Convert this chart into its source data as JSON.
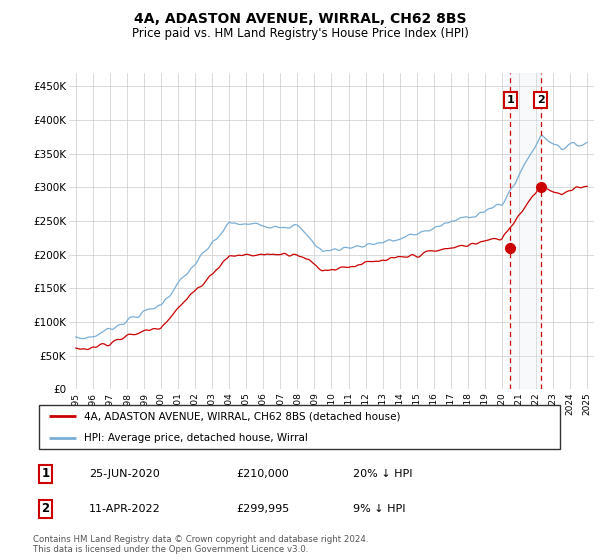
{
  "title": "4A, ADASTON AVENUE, WIRRAL, CH62 8BS",
  "subtitle": "Price paid vs. HM Land Registry's House Price Index (HPI)",
  "footer": "Contains HM Land Registry data © Crown copyright and database right 2024.\nThis data is licensed under the Open Government Licence v3.0.",
  "legend_line1": "4A, ADASTON AVENUE, WIRRAL, CH62 8BS (detached house)",
  "legend_line2": "HPI: Average price, detached house, Wirral",
  "annotation1_label": "1",
  "annotation1_date": "25-JUN-2020",
  "annotation1_price": "£210,000",
  "annotation1_hpi": "20% ↓ HPI",
  "annotation2_label": "2",
  "annotation2_date": "11-APR-2022",
  "annotation2_price": "£299,995",
  "annotation2_hpi": "9% ↓ HPI",
  "red_color": "#cc0000",
  "blue_color": "#7aaed6",
  "shading_color": "#dce6f0",
  "annotation_box_color": "#cc0000",
  "ylim_min": 0,
  "ylim_max": 470000,
  "yticks": [
    0,
    50000,
    100000,
    150000,
    200000,
    250000,
    300000,
    350000,
    400000,
    450000
  ],
  "ytick_labels": [
    "£0",
    "£50K",
    "£100K",
    "£150K",
    "£200K",
    "£250K",
    "£300K",
    "£350K",
    "£400K",
    "£450K"
  ],
  "sale1_year": 2020.5,
  "sale1_price": 210000,
  "sale2_year": 2022.27,
  "sale2_price": 299995
}
